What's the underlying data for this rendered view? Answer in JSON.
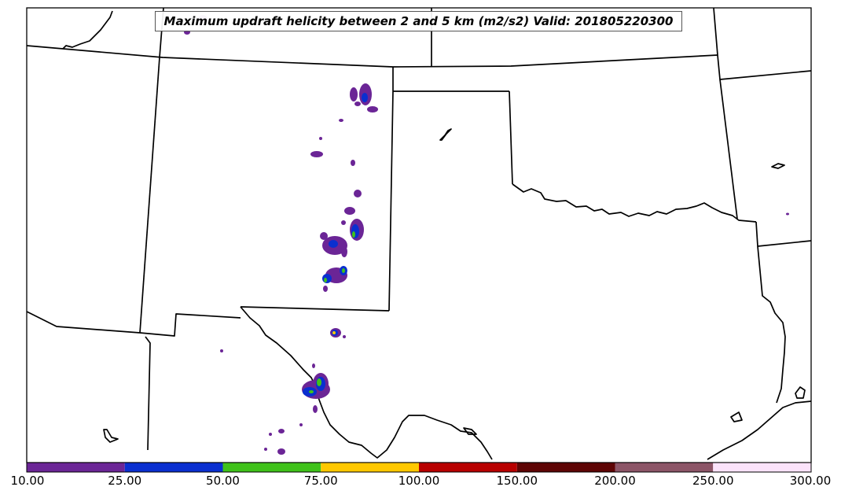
{
  "title": "Maximum updraft helicity between 2 and 5 km (m2/s2) Valid: 201805220300",
  "colorbar": {
    "bins": [
      {
        "from": "10.00",
        "to": "25.00",
        "color": "#6b2596"
      },
      {
        "from": "25.00",
        "to": "50.00",
        "color": "#0a2fd0"
      },
      {
        "from": "50.00",
        "to": "75.00",
        "color": "#3fc21a"
      },
      {
        "from": "75.00",
        "to": "100.00",
        "color": "#ffc800"
      },
      {
        "from": "100.00",
        "to": "150.00",
        "color": "#b80000"
      },
      {
        "from": "150.00",
        "to": "200.00",
        "color": "#5e0505"
      },
      {
        "from": "200.00",
        "to": "250.00",
        "color": "#8c5567"
      },
      {
        "from": "250.00",
        "to": "300.00",
        "color": "#fbe3fa"
      }
    ],
    "labels": [
      "10.00",
      "25.00",
      "50.00",
      "75.00",
      "100.00",
      "150.00",
      "200.00",
      "250.00",
      "300.00"
    ]
  },
  "colors": {
    "boundary": "#000000",
    "level_10": "#6b2596",
    "level_25": "#0a2fd0",
    "level_50": "#3fc21a",
    "level_75": "#ffc800"
  }
}
